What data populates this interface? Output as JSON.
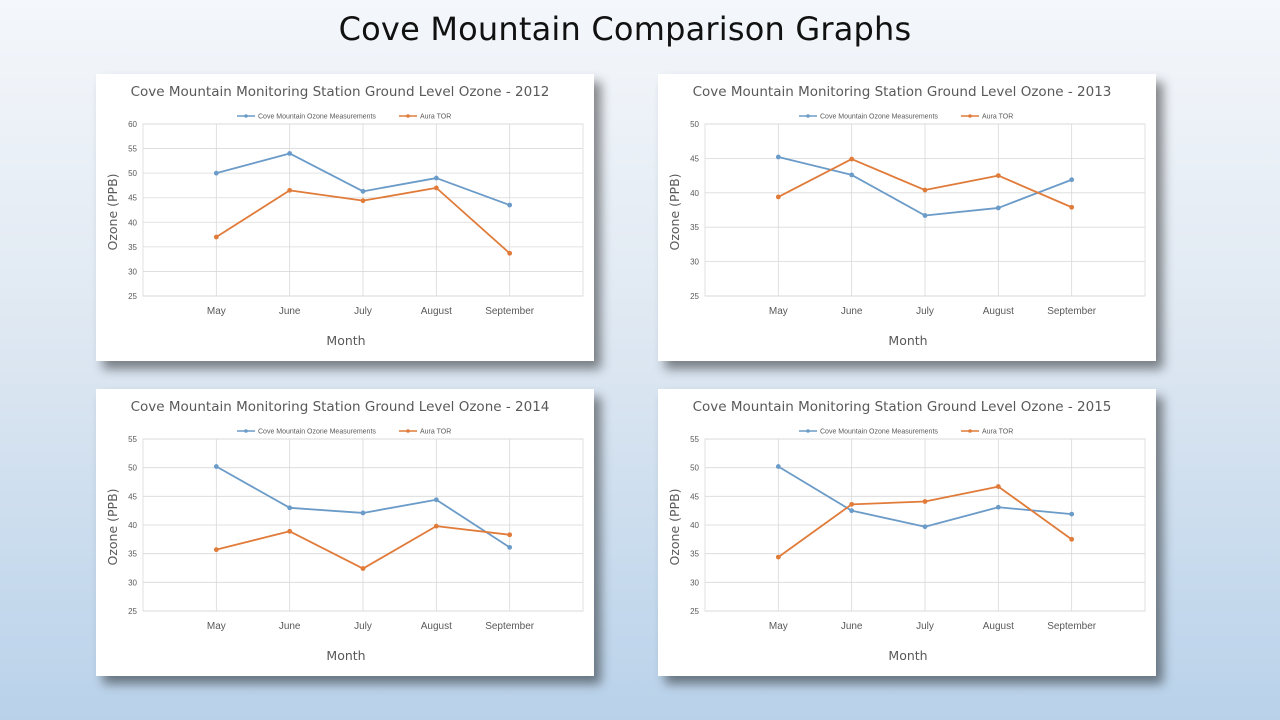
{
  "slide": {
    "title": "Cove Mountain Comparison Graphs"
  },
  "colors": {
    "series1": "#6b9bc8",
    "series2": "#e07b39",
    "grid": "#d9d9d9",
    "text": "#595959"
  },
  "chart_data": [
    {
      "type": "line",
      "title": "Cove Mountain Monitoring Station Ground Level Ozone - 2012",
      "xlabel": "Month",
      "ylabel": "Ozone (PPB)",
      "categories": [
        "May",
        "June",
        "July",
        "August",
        "September"
      ],
      "ylim": [
        25,
        60
      ],
      "ystep": 5,
      "legend_position": "top",
      "grid": true,
      "series": [
        {
          "name": "Cove Mountain Ozone Measurements",
          "values": [
            50,
            54,
            46.3,
            49,
            43.5
          ]
        },
        {
          "name": "Aura TOR",
          "values": [
            37,
            46.5,
            44.4,
            47,
            33.7
          ]
        }
      ]
    },
    {
      "type": "line",
      "title": "Cove Mountain Monitoring Station Ground Level Ozone - 2013",
      "xlabel": "Month",
      "ylabel": "Ozone (PPB)",
      "categories": [
        "May",
        "June",
        "July",
        "August",
        "September"
      ],
      "ylim": [
        25,
        50
      ],
      "ystep": 5,
      "legend_position": "top",
      "grid": true,
      "series": [
        {
          "name": "Cove Mountain Ozone Measurements",
          "values": [
            45.2,
            42.6,
            36.7,
            37.8,
            41.9
          ]
        },
        {
          "name": "Aura TOR",
          "values": [
            39.4,
            44.9,
            40.4,
            42.5,
            37.9
          ]
        }
      ]
    },
    {
      "type": "line",
      "title": "Cove Mountain Monitoring Station Ground Level Ozone - 2014",
      "xlabel": "Month",
      "ylabel": "Ozone (PPB)",
      "categories": [
        "May",
        "June",
        "July",
        "August",
        "September"
      ],
      "ylim": [
        25,
        55
      ],
      "ystep": 5,
      "legend_position": "top",
      "grid": true,
      "series": [
        {
          "name": "Cove Mountain Ozone Measurements",
          "values": [
            50.2,
            43,
            42.1,
            44.4,
            36.1
          ]
        },
        {
          "name": "Aura TOR",
          "values": [
            35.7,
            38.9,
            32.4,
            39.8,
            38.3
          ]
        }
      ]
    },
    {
      "type": "line",
      "title": "Cove Mountain Monitoring Station Ground Level Ozone - 2015",
      "xlabel": "Month",
      "ylabel": "Ozone (PPB)",
      "categories": [
        "May",
        "June",
        "July",
        "August",
        "September"
      ],
      "ylim": [
        25,
        55
      ],
      "ystep": 5,
      "legend_position": "top",
      "grid": true,
      "series": [
        {
          "name": "Cove Mountain Ozone Measurements",
          "values": [
            50.2,
            42.5,
            39.7,
            43.1,
            41.9
          ]
        },
        {
          "name": "Aura TOR",
          "values": [
            34.4,
            43.6,
            44.1,
            46.7,
            37.5
          ]
        }
      ]
    }
  ]
}
